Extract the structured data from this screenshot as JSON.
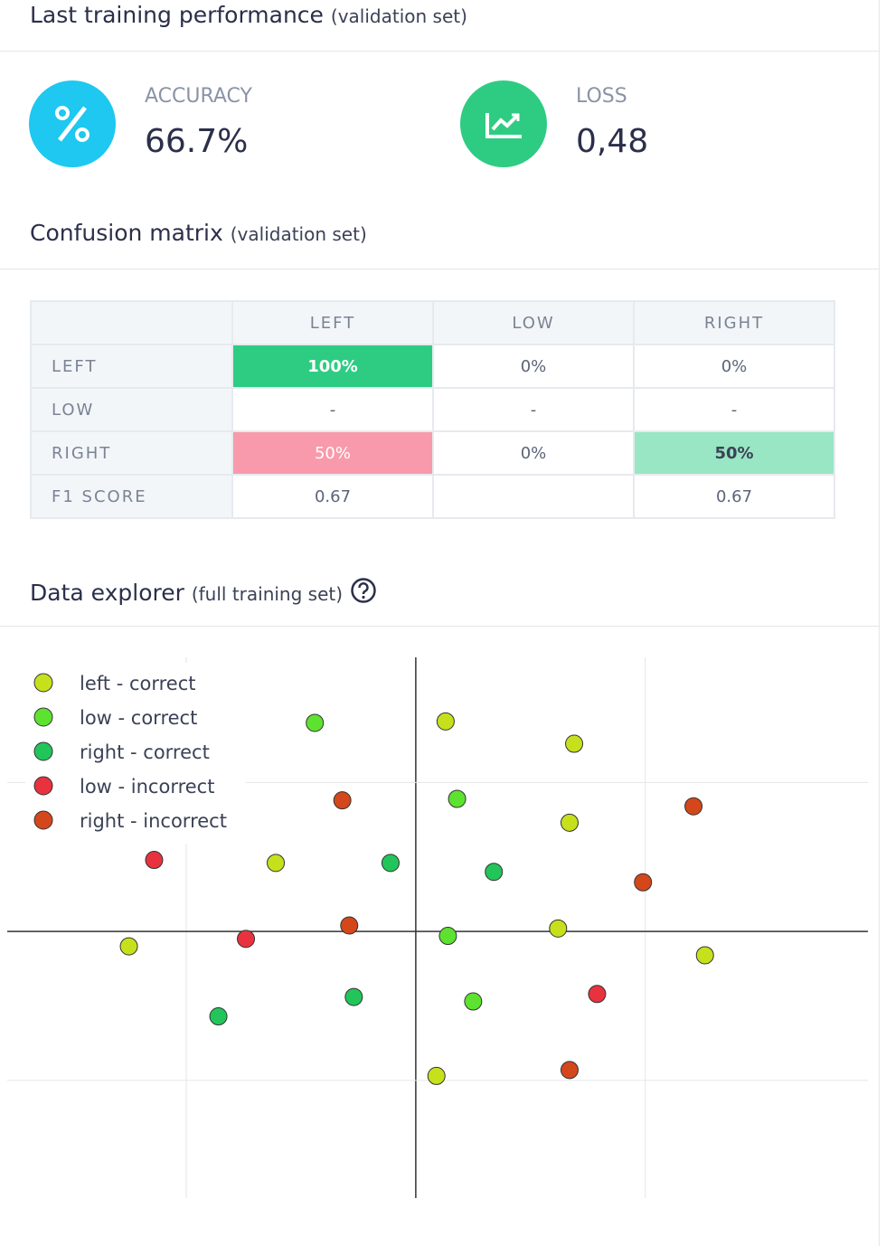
{
  "header": {
    "title": "Last training performance",
    "subtitle": "(validation set)"
  },
  "metrics": [
    {
      "label": "ACCURACY",
      "value": "66.7%"
    },
    {
      "label": "LOSS",
      "value": "0,48"
    }
  ],
  "confusion_matrix": {
    "title": "Confusion matrix",
    "subtitle": "(validation set)",
    "columns": [
      "LEFT",
      "LOW",
      "RIGHT"
    ],
    "rows": [
      {
        "label": "LEFT",
        "cells": [
          "100%",
          "0%",
          "0%"
        ]
      },
      {
        "label": "LOW",
        "cells": [
          "-",
          "-",
          "-"
        ]
      },
      {
        "label": "RIGHT",
        "cells": [
          "50%",
          "0%",
          "50%"
        ]
      },
      {
        "label": "F1 SCORE",
        "cells": [
          "0.67",
          null,
          "0.67"
        ]
      }
    ]
  },
  "data_explorer": {
    "title": "Data explorer",
    "subtitle": "(full training set)"
  },
  "chart_data": {
    "type": "scatter",
    "xlim": [
      -1.78,
      1.97
    ],
    "ylim": [
      -1.79,
      1.84
    ],
    "xticks": [
      -1,
      0,
      1
    ],
    "yticks": [
      -1,
      0,
      1
    ],
    "grid": true,
    "legend": "upper left",
    "series": [
      {
        "name": "left - correct",
        "color": "#c6e01c",
        "x": [
          0.13,
          0.69,
          0.67,
          -0.61,
          0.62,
          -1.25,
          1.26,
          0.09
        ],
        "y": [
          1.41,
          1.26,
          0.73,
          0.46,
          0.02,
          -0.1,
          -0.16,
          -0.97
        ]
      },
      {
        "name": "low - correct",
        "color": "#5de22f",
        "x": [
          -0.44,
          0.18,
          0.14,
          0.25
        ],
        "y": [
          1.4,
          0.89,
          -0.03,
          -0.47
        ]
      },
      {
        "name": "right - correct",
        "color": "#22c55a",
        "x": [
          -0.11,
          0.34,
          -0.27,
          -0.86
        ],
        "y": [
          0.46,
          0.4,
          -0.44,
          -0.57
        ]
      },
      {
        "name": "low - incorrect",
        "color": "#e8323e",
        "x": [
          -1.14,
          -0.74,
          0.79
        ],
        "y": [
          0.48,
          -0.05,
          -0.42
        ]
      },
      {
        "name": "right - incorrect",
        "color": "#d4471a",
        "x": [
          -0.32,
          1.21,
          0.99,
          -0.29,
          0.67
        ],
        "y": [
          0.88,
          0.84,
          0.33,
          0.04,
          -0.93
        ]
      }
    ]
  }
}
